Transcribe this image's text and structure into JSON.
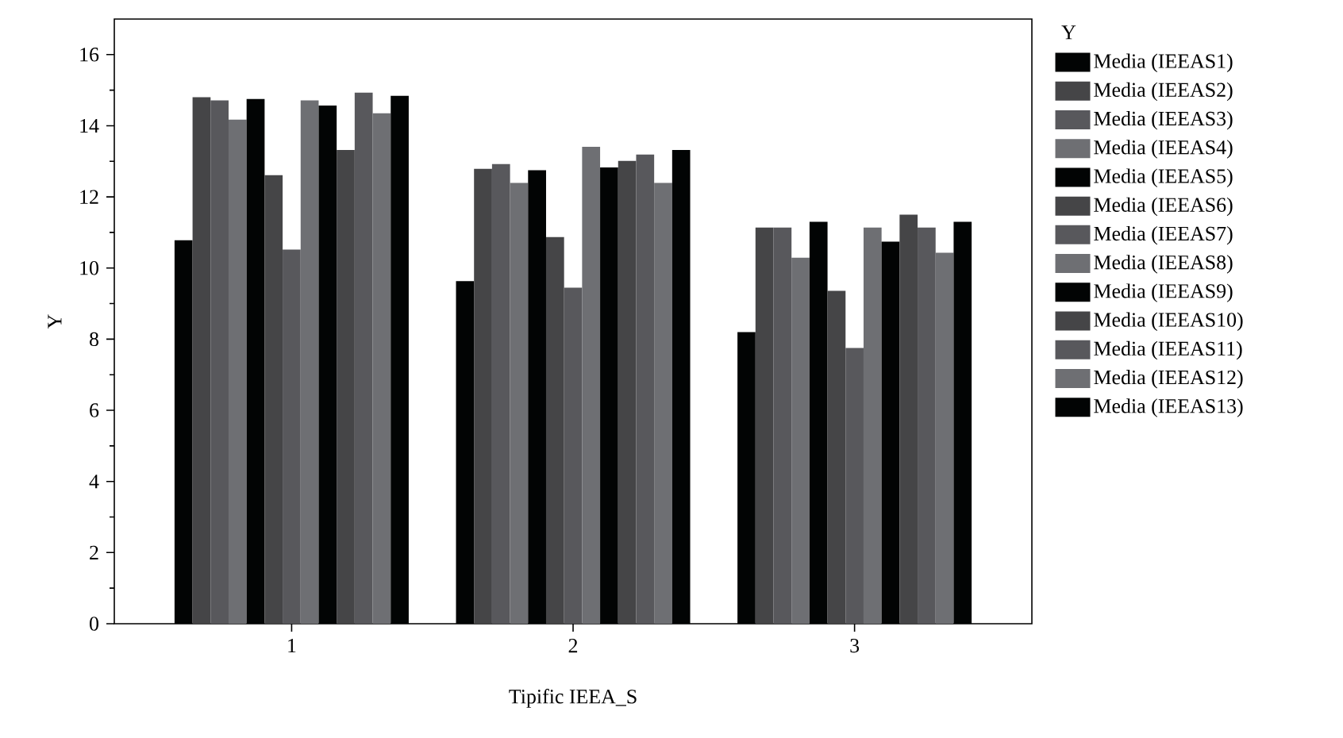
{
  "chart_data": {
    "type": "bar",
    "xlabel": "Tipific IEEA_S",
    "ylabel": "Y",
    "legend_title": "Y",
    "categories": [
      "1",
      "2",
      "3"
    ],
    "ylim": [
      0,
      17
    ],
    "yticks": [
      0,
      2,
      4,
      6,
      8,
      10,
      12,
      14,
      16
    ],
    "legend": "right",
    "grid": false,
    "series": [
      {
        "name": "Media (IEEAS1)",
        "color": "#020404",
        "values": [
          10.78,
          9.63,
          8.2
        ]
      },
      {
        "name": "Media (IEEAS2)",
        "color": "#454547",
        "values": [
          14.8,
          12.79,
          11.14
        ]
      },
      {
        "name": "Media (IEEAS3)",
        "color": "#58585c",
        "values": [
          14.71,
          12.92,
          11.14
        ]
      },
      {
        "name": "Media (IEEAS4)",
        "color": "#6e6f73",
        "values": [
          14.17,
          12.39,
          10.29
        ]
      },
      {
        "name": "Media (IEEAS5)",
        "color": "#020404",
        "values": [
          14.75,
          12.75,
          11.3
        ]
      },
      {
        "name": "Media (IEEAS6)",
        "color": "#454547",
        "values": [
          12.61,
          10.87,
          9.36
        ]
      },
      {
        "name": "Media (IEEAS7)",
        "color": "#58585c",
        "values": [
          10.52,
          9.45,
          7.75
        ]
      },
      {
        "name": "Media (IEEAS8)",
        "color": "#6e6f73",
        "values": [
          14.71,
          13.41,
          11.14
        ]
      },
      {
        "name": "Media (IEEAS9)",
        "color": "#020404",
        "values": [
          14.57,
          12.83,
          10.74
        ]
      },
      {
        "name": "Media (IEEAS10)",
        "color": "#454547",
        "values": [
          13.32,
          13.01,
          11.5
        ]
      },
      {
        "name": "Media (IEEAS11)",
        "color": "#58585c",
        "values": [
          14.93,
          13.19,
          11.14
        ]
      },
      {
        "name": "Media (IEEAS12)",
        "color": "#6e6f73",
        "values": [
          14.35,
          12.39,
          10.43
        ]
      },
      {
        "name": "Media (IEEAS13)",
        "color": "#020404",
        "values": [
          14.84,
          13.32,
          11.3
        ]
      }
    ]
  }
}
